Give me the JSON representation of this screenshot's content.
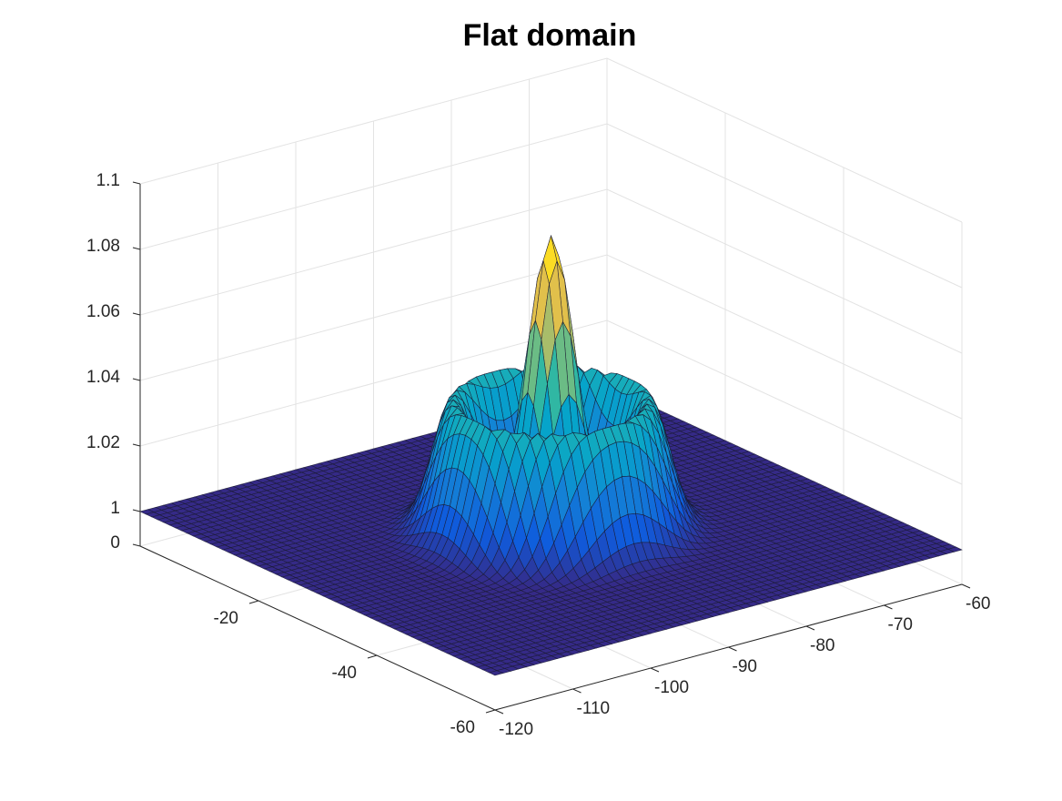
{
  "chart_data": {
    "type": "surface",
    "title": "Flat domain",
    "xlabel": "",
    "ylabel": "",
    "zlabel": "",
    "xlim": [
      -120,
      -60
    ],
    "ylim": [
      -60,
      0
    ],
    "zlim": [
      1,
      1.1
    ],
    "x_ticks": [
      "-120",
      "-110",
      "-100",
      "-90",
      "-80",
      "-70",
      "-60"
    ],
    "y_ticks": [
      "-60",
      "-40",
      "-20"
    ],
    "z_ticks": [
      "0",
      "1",
      "1.02",
      "1.04",
      "1.06",
      "1.08",
      "1.1"
    ],
    "grid": true,
    "colormap": "parula",
    "colormap_colors": [
      "#352a87",
      "#0f5cdd",
      "#1481d6",
      "#06a4ca",
      "#2eb7a4",
      "#87bf77",
      "#d1bb59",
      "#fec832",
      "#f9fb0e"
    ],
    "surface": {
      "center": [
        -90,
        -30
      ],
      "baseline": 1.0,
      "peak": {
        "value": 1.09,
        "radius_sd": 2.5
      },
      "ring": {
        "value": 1.04,
        "radius": 10,
        "width_sd": 2.2
      },
      "description_points": [
        {
          "x": -90,
          "y": -30,
          "z": 1.09
        },
        {
          "x": -80,
          "y": -30,
          "z": 1.04
        },
        {
          "x": -100,
          "y": -30,
          "z": 1.04
        },
        {
          "x": -120,
          "y": -60,
          "z": 1.0
        },
        {
          "x": -60,
          "y": 0,
          "z": 1.0
        }
      ]
    }
  }
}
